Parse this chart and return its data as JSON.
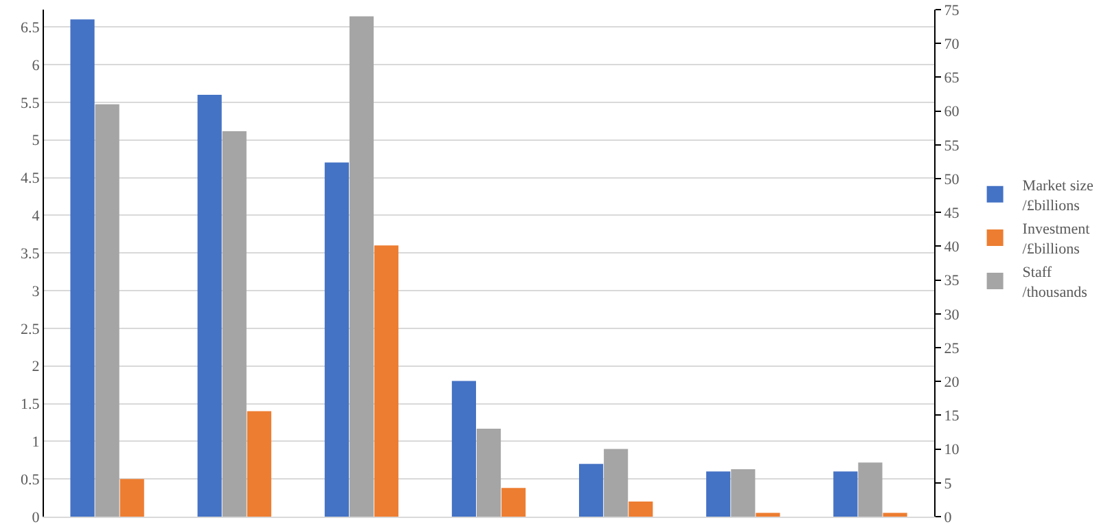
{
  "chart_data": {
    "type": "bar",
    "categories": [
      null,
      null,
      null,
      null,
      null,
      null,
      null
    ],
    "series": [
      {
        "name": "Market size /£billions",
        "color": "#4472c4",
        "values": [
          6.6,
          5.6,
          4.7,
          1.8,
          0.7,
          0.6,
          0.6
        ]
      },
      {
        "name": "Staff /thousands",
        "color": "#a5a5a5",
        "axis": "y2",
        "values": [
          61,
          57,
          74,
          13,
          10,
          7,
          8
        ]
      },
      {
        "name": "Investment /£billions",
        "color": "#ed7d31",
        "values": [
          0.5,
          1.4,
          3.6,
          0.38,
          0.2,
          0.05,
          0.05
        ]
      }
    ],
    "ylim": [
      0,
      6.73
    ],
    "yticks": [
      0,
      0.5,
      1,
      1.5,
      2,
      2.5,
      3,
      3.5,
      4,
      4.5,
      5,
      5.5,
      6,
      6.5
    ],
    "y2lim": [
      0,
      75
    ],
    "y2ticks": [
      0,
      5,
      10,
      15,
      20,
      25,
      30,
      35,
      40,
      45,
      50,
      55,
      60,
      65,
      70,
      75
    ],
    "grid": "y",
    "legend": "right",
    "tick_labels": "y"
  }
}
